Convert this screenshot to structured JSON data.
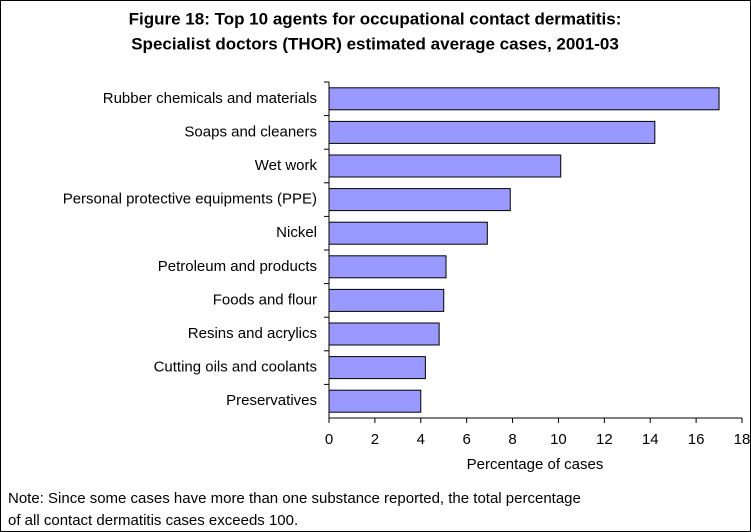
{
  "chart_data": {
    "type": "barh",
    "title": [
      "Figure 18: Top 10 agents for occupational contact dermatitis:",
      "Specialist doctors (THOR) estimated average cases, 2001-03"
    ],
    "categories": [
      "Rubber chemicals and materials",
      "Soaps and cleaners",
      "Wet work",
      "Personal protective equipments (PPE)",
      "Nickel",
      "Petroleum and products",
      "Foods and flour",
      "Resins and acrylics",
      "Cutting oils and coolants",
      "Preservatives"
    ],
    "values": [
      17.0,
      14.2,
      10.1,
      7.9,
      6.9,
      5.1,
      5.0,
      4.8,
      4.2,
      4.0
    ],
    "color": "#9999ff",
    "xlim": [
      0,
      18
    ],
    "xticks": [
      0,
      2,
      4,
      6,
      8,
      10,
      12,
      14,
      16,
      18
    ],
    "xlabel": "Percentage of cases",
    "note": [
      "Note: Since some cases have more than one substance reported, the total percentage",
      "of all contact dermatitis cases exceeds 100."
    ]
  }
}
